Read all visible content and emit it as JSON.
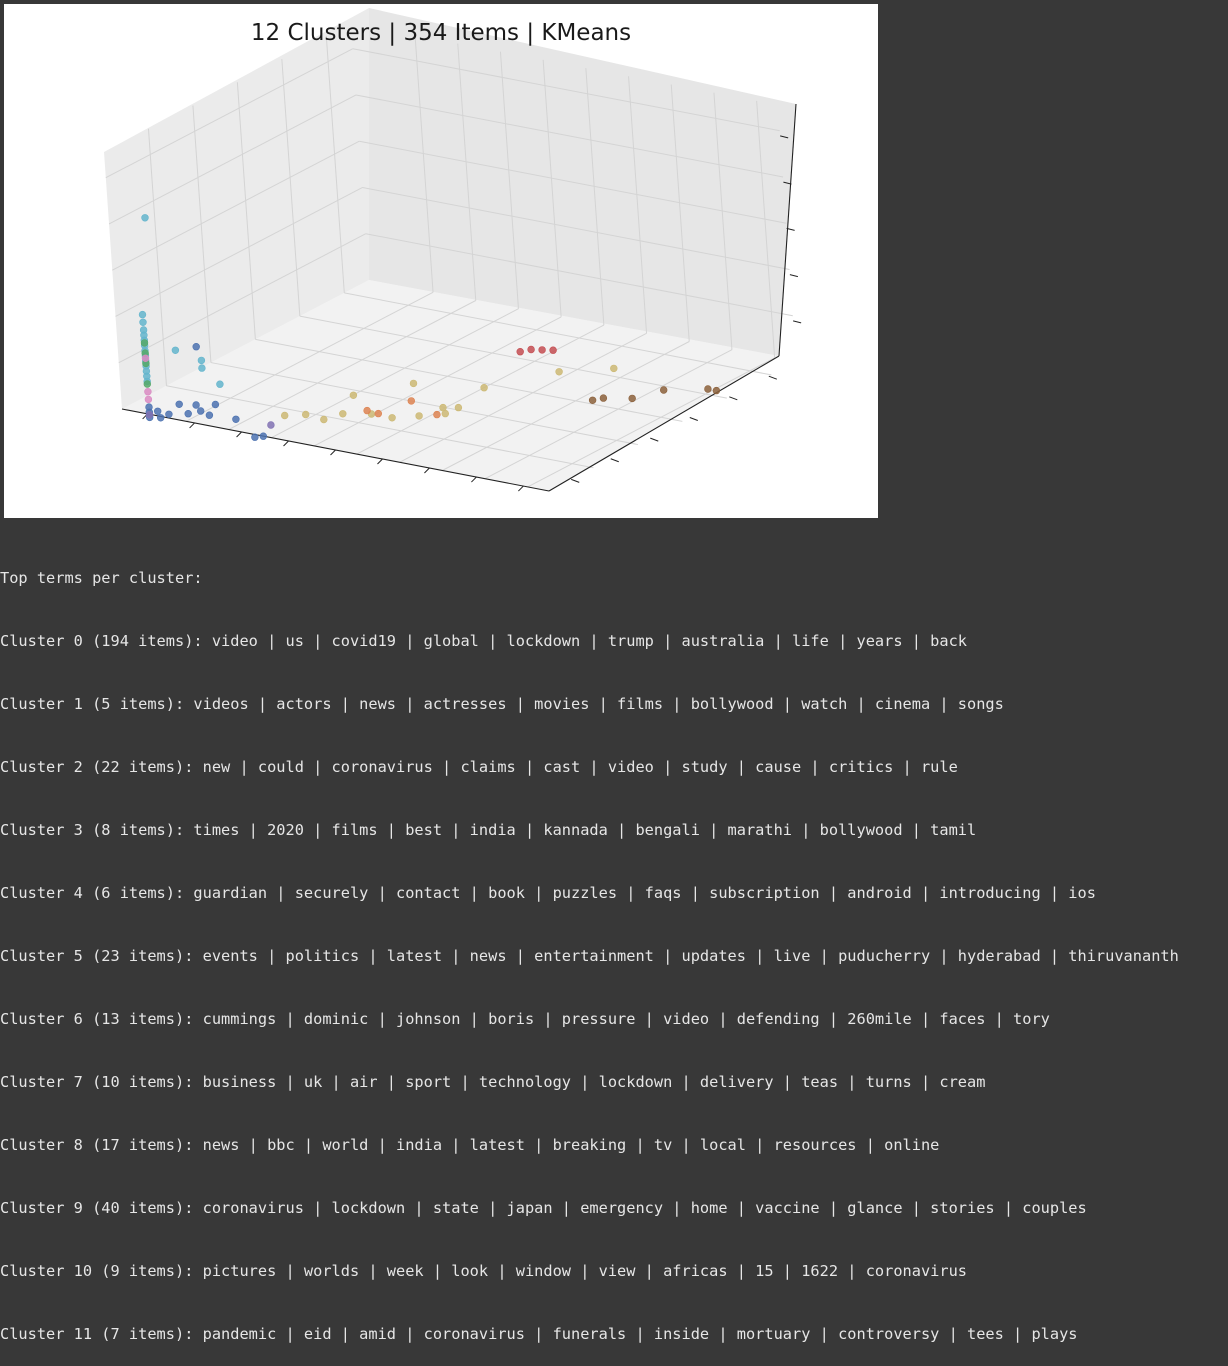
{
  "chart_data": {
    "type": "scatter",
    "projection": "3d",
    "title": "12 Clusters | 354 Items | KMeans",
    "grid": true,
    "tick_labels_visible": false,
    "colors": {
      "0": "#4c72b0",
      "1": "#dd8452",
      "2": "#ccb974",
      "3": "#8c613c",
      "4": "#da8bc3",
      "5": "#c44e52",
      "6": "#55a868",
      "7": "#dd8452",
      "8": "#4c72b0",
      "9": "#64b5cd",
      "10": "#ccb974",
      "11": "#8172b3"
    },
    "points": [
      {
        "x": 0.5,
        "y": 0.6,
        "z": 7.3,
        "c": 9
      },
      {
        "x": 0.4,
        "y": 0.4,
        "z": 3.6,
        "c": 9
      },
      {
        "x": 0.4,
        "y": 0.4,
        "z": 3.3,
        "c": 9
      },
      {
        "x": 0.4,
        "y": 0.4,
        "z": 3.0,
        "c": 9
      },
      {
        "x": 0.4,
        "y": 0.4,
        "z": 2.8,
        "c": 9
      },
      {
        "x": 0.4,
        "y": 0.4,
        "z": 2.6,
        "c": 9
      },
      {
        "x": 0.4,
        "y": 0.4,
        "z": 2.4,
        "c": 9
      },
      {
        "x": 0.4,
        "y": 0.4,
        "z": 2.2,
        "c": 9
      },
      {
        "x": 0.4,
        "y": 0.4,
        "z": 2.0,
        "c": 9
      },
      {
        "x": 0.4,
        "y": 0.4,
        "z": 1.8,
        "c": 9
      },
      {
        "x": 0.4,
        "y": 0.4,
        "z": 1.6,
        "c": 9
      },
      {
        "x": 0.4,
        "y": 0.4,
        "z": 1.4,
        "c": 9
      },
      {
        "x": 0.4,
        "y": 0.4,
        "z": 1.2,
        "c": 9
      },
      {
        "x": 0.4,
        "y": 0.4,
        "z": 1.0,
        "c": 9
      },
      {
        "x": 1.0,
        "y": 0.6,
        "z": 2.3,
        "c": 9
      },
      {
        "x": 1.6,
        "y": 0.6,
        "z": 1.8,
        "c": 9
      },
      {
        "x": 1.6,
        "y": 0.6,
        "z": 2.1,
        "c": 9
      },
      {
        "x": 2.0,
        "y": 0.6,
        "z": 1.3,
        "c": 9
      },
      {
        "x": 0.4,
        "y": 0.4,
        "z": 2.5,
        "c": 6
      },
      {
        "x": 0.4,
        "y": 0.4,
        "z": 2.1,
        "c": 6
      },
      {
        "x": 0.4,
        "y": 0.4,
        "z": 1.7,
        "c": 6
      },
      {
        "x": 0.4,
        "y": 0.4,
        "z": 0.9,
        "c": 6
      },
      {
        "x": 0.4,
        "y": 0.4,
        "z": 1.9,
        "c": 4
      },
      {
        "x": 0.4,
        "y": 0.4,
        "z": 0.6,
        "c": 4
      },
      {
        "x": 0.4,
        "y": 0.4,
        "z": 0.3,
        "c": 4
      },
      {
        "x": 0.4,
        "y": 0.4,
        "z": 0.0,
        "c": 0
      },
      {
        "x": 0.4,
        "y": 0.4,
        "z": -0.2,
        "c": 0
      },
      {
        "x": 0.4,
        "y": 0.4,
        "z": -0.4,
        "c": 0
      },
      {
        "x": 0.6,
        "y": 0.4,
        "z": -0.1,
        "c": 0
      },
      {
        "x": 0.6,
        "y": 0.5,
        "z": -0.4,
        "c": 0
      },
      {
        "x": 0.8,
        "y": 0.5,
        "z": -0.2,
        "c": 0
      },
      {
        "x": 1.0,
        "y": 0.6,
        "z": 0.2,
        "c": 0
      },
      {
        "x": 1.2,
        "y": 0.6,
        "z": -0.1,
        "c": 0
      },
      {
        "x": 1.4,
        "y": 0.6,
        "z": 0.3,
        "c": 0
      },
      {
        "x": 1.5,
        "y": 0.6,
        "z": 0.1,
        "c": 0
      },
      {
        "x": 1.7,
        "y": 0.6,
        "z": 0.0,
        "c": 0
      },
      {
        "x": 1.8,
        "y": 0.7,
        "z": 0.4,
        "c": 0
      },
      {
        "x": 2.2,
        "y": 0.8,
        "z": -0.1,
        "c": 0
      },
      {
        "x": 1.5,
        "y": 0.6,
        "z": 2.6,
        "c": 0
      },
      {
        "x": 2.5,
        "y": 1.0,
        "z": -0.8,
        "c": 0
      },
      {
        "x": 2.7,
        "y": 1.0,
        "z": -0.7,
        "c": 0
      },
      {
        "x": 2.9,
        "y": 1.0,
        "z": -0.2,
        "c": 11
      },
      {
        "x": 0.4,
        "y": 0.4,
        "z": -0.3,
        "c": 11
      },
      {
        "x": 3.0,
        "y": 1.4,
        "z": 0.0,
        "c": 2
      },
      {
        "x": 3.5,
        "y": 1.4,
        "z": 0.2,
        "c": 2
      },
      {
        "x": 3.8,
        "y": 1.6,
        "z": 0.0,
        "c": 2
      },
      {
        "x": 4.2,
        "y": 1.7,
        "z": 0.3,
        "c": 2
      },
      {
        "x": 4.3,
        "y": 2.0,
        "z": 0.9,
        "c": 2
      },
      {
        "x": 4.7,
        "y": 2.0,
        "z": 0.3,
        "c": 2
      },
      {
        "x": 5.0,
        "y": 2.3,
        "z": 0.1,
        "c": 2
      },
      {
        "x": 5.4,
        "y": 2.7,
        "z": 0.1,
        "c": 2
      },
      {
        "x": 5.2,
        "y": 2.9,
        "z": 1.2,
        "c": 2
      },
      {
        "x": 5.8,
        "y": 3.0,
        "z": 0.4,
        "c": 2
      },
      {
        "x": 5.6,
        "y": 3.4,
        "z": -0.1,
        "c": 2
      },
      {
        "x": 5.8,
        "y": 3.6,
        "z": 0.1,
        "c": 2
      },
      {
        "x": 6.2,
        "y": 4.0,
        "z": 0.8,
        "c": 2
      },
      {
        "x": 7.4,
        "y": 5.0,
        "z": 1.3,
        "c": 2
      },
      {
        "x": 8.4,
        "y": 5.5,
        "z": 1.5,
        "c": 2
      },
      {
        "x": 4.6,
        "y": 2.0,
        "z": 0.4,
        "c": 7
      },
      {
        "x": 4.8,
        "y": 2.1,
        "z": 0.3,
        "c": 7
      },
      {
        "x": 5.3,
        "y": 2.6,
        "z": 0.7,
        "c": 7
      },
      {
        "x": 5.4,
        "y": 3.4,
        "z": -0.2,
        "c": 7
      },
      {
        "x": 7.3,
        "y": 3.7,
        "z": 2.7,
        "c": 5
      },
      {
        "x": 7.5,
        "y": 3.8,
        "z": 2.8,
        "c": 5
      },
      {
        "x": 7.7,
        "y": 3.9,
        "z": 2.8,
        "c": 5
      },
      {
        "x": 7.9,
        "y": 4.0,
        "z": 2.8,
        "c": 5
      },
      {
        "x": 7.6,
        "y": 5.9,
        "z": -0.2,
        "c": 3
      },
      {
        "x": 7.8,
        "y": 6.0,
        "z": -0.1,
        "c": 3
      },
      {
        "x": 8.3,
        "y": 6.3,
        "z": -0.1,
        "c": 3
      },
      {
        "x": 9.0,
        "y": 6.4,
        "z": 0.4,
        "c": 3
      },
      {
        "x": 9.2,
        "y": 7.8,
        "z": -0.2,
        "c": 3
      },
      {
        "x": 9.4,
        "y": 7.8,
        "z": -0.2,
        "c": 3
      }
    ]
  },
  "output": {
    "header": "Top terms per cluster:",
    "lines": [
      "Cluster 0 (194 items): video | us | covid19 | global | lockdown | trump | australia | life | years | back",
      "Cluster 1 (5 items): videos | actors | news | actresses | movies | films | bollywood | watch | cinema | songs",
      "Cluster 2 (22 items): new | could | coronavirus | claims | cast | video | study | cause | critics | rule",
      "Cluster 3 (8 items): times | 2020 | films | best | india | kannada | bengali | marathi | bollywood | tamil",
      "Cluster 4 (6 items): guardian | securely | contact | book | puzzles | faqs | subscription | android | introducing | ios",
      "Cluster 5 (23 items): events | politics | latest | news | entertainment | updates | live | puducherry | hyderabad | thiruvananth",
      "Cluster 6 (13 items): cummings | dominic | johnson | boris | pressure | video | defending | 260mile | faces | tory",
      "Cluster 7 (10 items): business | uk | air | sport | technology | lockdown | delivery | teas | turns | cream",
      "Cluster 8 (17 items): news | bbc | world | india | latest | breaking | tv | local | resources | online",
      "Cluster 9 (40 items): coronavirus | lockdown | state | japan | emergency | home | vaccine | glance | stories | couples",
      "Cluster 10 (9 items): pictures | worlds | week | look | window | view | africas | 15 | 1622 | coronavirus",
      "Cluster 11 (7 items): pandemic | eid | amid | coronavirus | funerals | inside | mortuary | controversy | tees | plays"
    ]
  }
}
